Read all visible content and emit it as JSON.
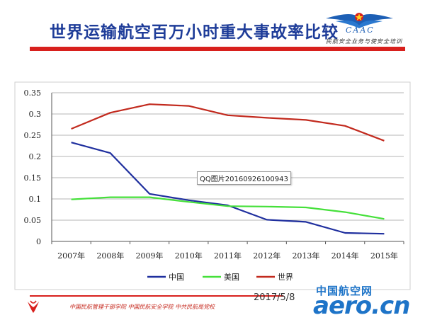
{
  "page": {
    "title": "世界运输航空百万小时重大事故率比较",
    "logo_text": "CAAC",
    "logo_subtitle": "民航安全业务与使安全培训",
    "tooltip": "QQ图片20160926100943",
    "footer_text": "中国民航管理干部学院 中国民航安全学院 中共民航局党校",
    "footer_date": "2017/5/8",
    "watermark_cn": "中国航空网",
    "watermark_domain": "aero.cn",
    "colors": {
      "title": "#1f3d99",
      "rule": "#d8201d",
      "watermark": "#1e74c8"
    }
  },
  "chart_data": {
    "type": "line",
    "categories": [
      "2007年",
      "2008年",
      "2009年",
      "2010年",
      "2011年",
      "2012年",
      "2013年",
      "2014年",
      "2015年"
    ],
    "series": [
      {
        "name": "中国",
        "color": "#1f2f9e",
        "values": [
          0.233,
          0.208,
          0.112,
          0.097,
          0.085,
          0.051,
          0.046,
          0.02,
          0.018
        ]
      },
      {
        "name": "美国",
        "color": "#45e03a",
        "values": [
          0.099,
          0.104,
          0.104,
          0.093,
          0.083,
          0.082,
          0.08,
          0.069,
          0.053
        ]
      },
      {
        "name": "世界",
        "color": "#c22a1e",
        "values": [
          0.265,
          0.303,
          0.323,
          0.319,
          0.297,
          0.291,
          0.286,
          0.272,
          0.237
        ]
      }
    ],
    "yticks": [
      "0",
      "0.05",
      "0.1",
      "0.15",
      "0.2",
      "0.25",
      "0.3",
      "0.35"
    ],
    "ylim": [
      0,
      0.35
    ],
    "grid": true,
    "legend": "bottom"
  }
}
